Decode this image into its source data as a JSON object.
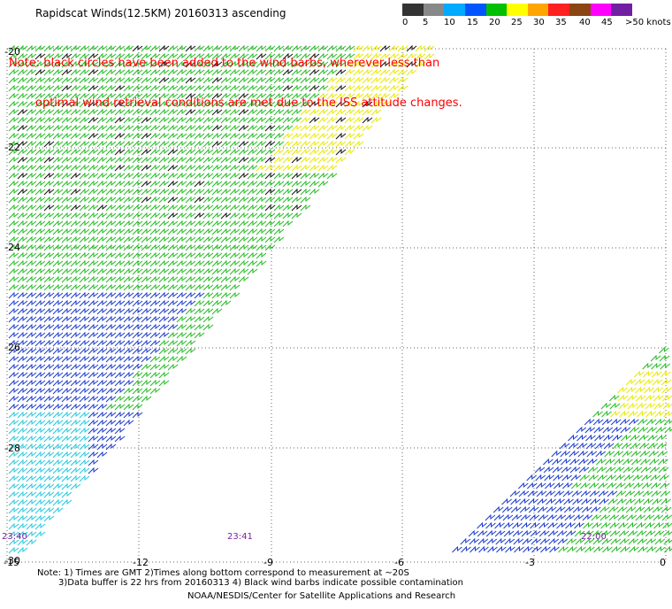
{
  "title": "Rapidscat Winds(12.5KM) 20160313 ascending",
  "note_red": [
    "Note: black circles have been added to the wind barbs, wherever less than",
    "optimal wind retrieval conditions are met due to the ISS attitude changes."
  ],
  "scale": {
    "labels": [
      "0",
      "5",
      "10",
      "15",
      "20",
      "25",
      "30",
      "35",
      "40",
      "45",
      ">50 knots"
    ],
    "colors": [
      "#333333",
      "#888888",
      "#00aaff",
      "#0055ff",
      "#00c000",
      "#ffff00",
      "#ffa500",
      "#ff2020",
      "#8b4513",
      "#ff00ff",
      "#7020a0"
    ]
  },
  "axes": {
    "lat_labels": [
      "-20",
      "-22",
      "-24",
      "-26",
      "-28",
      "-30"
    ],
    "lon_labels": [
      "-15",
      "-12",
      "-9",
      "-6",
      "-3",
      "0"
    ]
  },
  "time_labels": [
    "23:40",
    "23:41",
    "22:00"
  ],
  "footer": {
    "line1": "Note: 1) Times are GMT 2)Times along bottom correspond to measurement at ~20S",
    "line2": "3)Data buffer is 22 hrs from 20160313 4) Black wind barbs indicate possible contamination",
    "credit": "NOAA/NESDIS/Center for Satellite Applications and Research"
  }
}
